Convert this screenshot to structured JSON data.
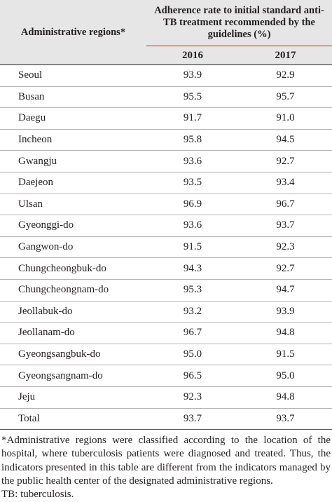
{
  "table": {
    "header": {
      "region": "Administrative regions*",
      "metric": "Adherence rate to initial standard anti-TB treatment recommended by the guidelines (%)",
      "years": [
        "2016",
        "2017"
      ]
    },
    "rows": [
      {
        "region": "Seoul",
        "y2016": "93.9",
        "y2017": "92.9"
      },
      {
        "region": "Busan",
        "y2016": "95.5",
        "y2017": "95.7"
      },
      {
        "region": "Daegu",
        "y2016": "91.7",
        "y2017": "91.0"
      },
      {
        "region": "Incheon",
        "y2016": "95.8",
        "y2017": "94.5"
      },
      {
        "region": "Gwangju",
        "y2016": "93.6",
        "y2017": "92.7"
      },
      {
        "region": "Daejeon",
        "y2016": "93.5",
        "y2017": "93.4"
      },
      {
        "region": "Ulsan",
        "y2016": "96.9",
        "y2017": "96.7"
      },
      {
        "region": "Gyeonggi-do",
        "y2016": "93.6",
        "y2017": "93.7"
      },
      {
        "region": "Gangwon-do",
        "y2016": "91.5",
        "y2017": "92.3"
      },
      {
        "region": "Chungcheongbuk-do",
        "y2016": "94.3",
        "y2017": "92.7"
      },
      {
        "region": "Chungcheongnam-do",
        "y2016": "95.3",
        "y2017": "94.7"
      },
      {
        "region": "Jeollabuk-do",
        "y2016": "93.2",
        "y2017": "93.9"
      },
      {
        "region": "Jeollanam-do",
        "y2016": "96.7",
        "y2017": "94.8"
      },
      {
        "region": "Gyeongsangbuk-do",
        "y2016": "95.0",
        "y2017": "91.5"
      },
      {
        "region": "Gyeongsangnam-do",
        "y2016": "96.5",
        "y2017": "95.0"
      },
      {
        "region": "Jeju",
        "y2016": "92.3",
        "y2017": "94.8"
      },
      {
        "region": "Total",
        "y2016": "93.7",
        "y2017": "93.7"
      }
    ]
  },
  "footnote": {
    "note": "*Administrative regions were classified according to the location of the hospital, where tuberculosis patients were diagnosed and treated. Thus, the indicators presented in this table are different from the indicators managed by the public health center of the designated administrative regions.",
    "abbreviation": "TB: tuberculosis."
  }
}
